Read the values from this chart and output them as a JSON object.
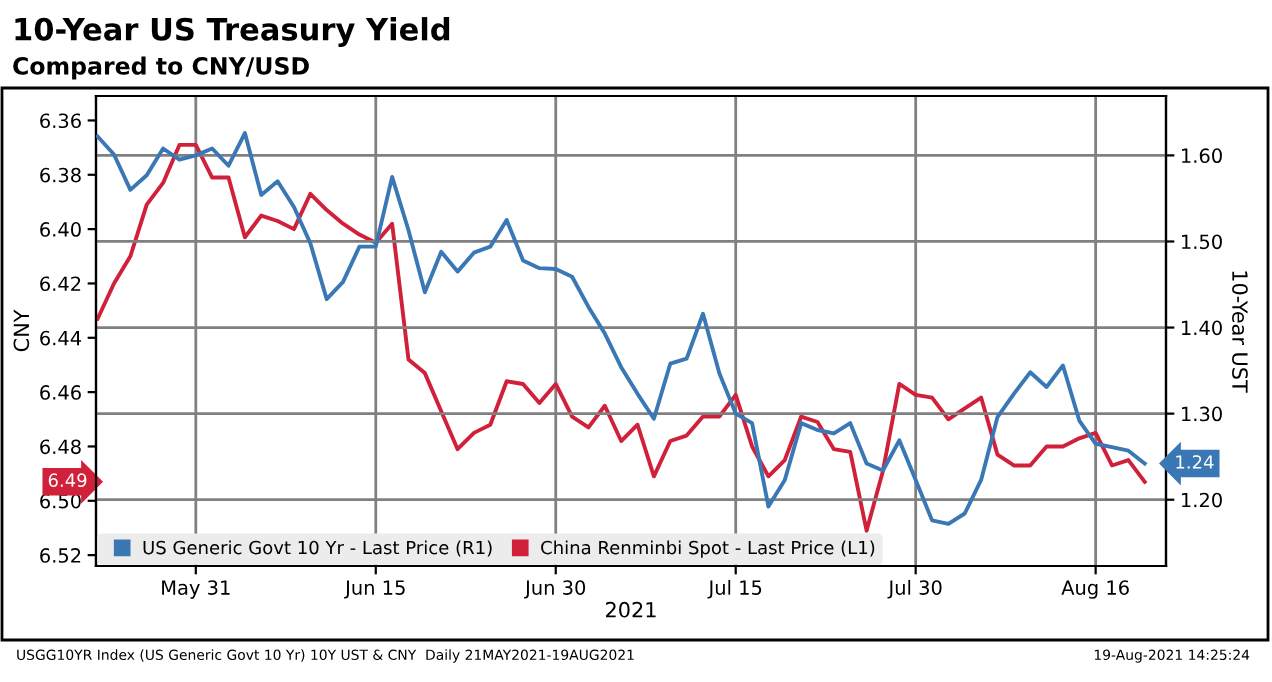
{
  "chart_data": {
    "type": "line",
    "title": "10-Year US Treasury Yield",
    "subtitle": "Compared to CNY/USD",
    "xlabel": "2021",
    "ylabel": "CNY",
    "y2label": "10-Year UST",
    "categories": [
      null,
      null,
      null,
      null,
      null,
      null,
      "May 31",
      null,
      null,
      null,
      null,
      null,
      null,
      null,
      null,
      null,
      null,
      "Jun 15",
      null,
      null,
      null,
      null,
      null,
      null,
      null,
      null,
      null,
      null,
      "Jun 30",
      null,
      null,
      null,
      null,
      null,
      null,
      null,
      null,
      null,
      null,
      "Jul 15",
      null,
      null,
      null,
      null,
      null,
      null,
      null,
      null,
      null,
      null,
      "Jul 30",
      null,
      null,
      null,
      null,
      null,
      null,
      null,
      null,
      null,
      null,
      "Aug 16",
      null,
      null,
      null
    ],
    "series": [
      {
        "name": "US Generic Govt 10 Yr - Last Price (R1)",
        "color": "#3a78b5",
        "axis": "y2",
        "values": [
          1.622,
          1.601,
          1.56,
          1.577,
          1.608,
          1.595,
          1.6,
          1.608,
          1.588,
          1.626,
          1.554,
          1.57,
          1.54,
          1.498,
          1.433,
          1.453,
          1.494,
          1.494,
          1.575,
          1.513,
          1.441,
          1.488,
          1.465,
          1.487,
          1.494,
          1.525,
          1.478,
          1.469,
          1.468,
          1.459,
          1.424,
          1.393,
          1.354,
          1.323,
          1.294,
          1.358,
          1.364,
          1.416,
          1.347,
          1.3,
          1.289,
          1.192,
          1.223,
          1.289,
          1.281,
          1.277,
          1.289,
          1.242,
          1.234,
          1.269,
          1.223,
          1.176,
          1.172,
          1.184,
          1.223,
          1.296,
          1.323,
          1.348,
          1.331,
          1.356,
          1.292,
          1.265,
          1.261,
          1.257,
          1.242
        ],
        "value_labels": [
          null,
          null,
          null,
          null,
          null,
          null,
          null,
          null,
          null,
          null,
          null,
          null,
          null,
          null,
          null,
          null,
          null,
          null,
          null,
          null,
          null,
          null,
          null,
          null,
          null,
          null,
          null,
          null,
          null,
          null,
          null,
          null,
          null,
          null,
          null,
          null,
          null,
          null,
          null,
          null,
          null,
          null,
          null,
          null,
          null,
          null,
          null,
          null,
          null,
          null,
          null,
          null,
          null,
          null,
          null,
          null,
          null,
          null,
          null,
          null,
          null,
          null,
          null,
          null,
          "1.24"
        ]
      },
      {
        "name": "China Renminbi Spot - Last Price (L1)",
        "color": "#d0203a",
        "values": [
          6.433,
          6.42,
          6.41,
          6.391,
          6.383,
          6.369,
          6.369,
          6.381,
          6.381,
          6.403,
          6.395,
          6.397,
          6.4,
          6.387,
          6.393,
          6.398,
          6.402,
          6.405,
          6.398,
          6.448,
          6.453,
          6.467,
          6.481,
          6.475,
          6.472,
          6.456,
          6.457,
          6.464,
          6.457,
          6.469,
          6.473,
          6.465,
          6.478,
          6.472,
          6.491,
          6.478,
          6.476,
          6.469,
          6.469,
          6.461,
          6.48,
          6.491,
          6.485,
          6.469,
          6.471,
          6.481,
          6.482,
          6.511,
          6.489,
          6.457,
          6.461,
          6.462,
          6.47,
          6.466,
          6.462,
          6.483,
          6.487,
          6.487,
          6.48,
          6.48,
          6.477,
          6.475,
          6.487,
          6.485,
          6.493
        ]
      }
    ],
    "ylim": [
      6.524,
      6.351
    ],
    "yticks": [
      6.36,
      6.38,
      {
        "value": 6.4,
        "label": "6.40"
      },
      6.42,
      6.44,
      6.46,
      6.48,
      {
        "value": 6.5,
        "label": "6.50"
      },
      6.52
    ],
    "y2lim": [
      1.123,
      1.669
    ],
    "y2ticks": [
      {
        "value": 1.2,
        "label": "1.20"
      },
      {
        "value": 1.3,
        "label": "1.30"
      },
      {
        "value": 1.4,
        "label": "1.40"
      },
      {
        "value": 1.5,
        "label": "1.50"
      },
      {
        "value": 1.6,
        "label": "1.60"
      }
    ],
    "grid": true,
    "legend": "bottom left",
    "line_style": "solid",
    "marker": "none",
    "annotations": [
      "6.49",
      "USGG10YR Index (US Generic Govt 10 Yr) 10Y UST & CNY  Daily 21MAY2021-19AUG2021",
      "19-Aug-2021 14:25:24"
    ]
  }
}
